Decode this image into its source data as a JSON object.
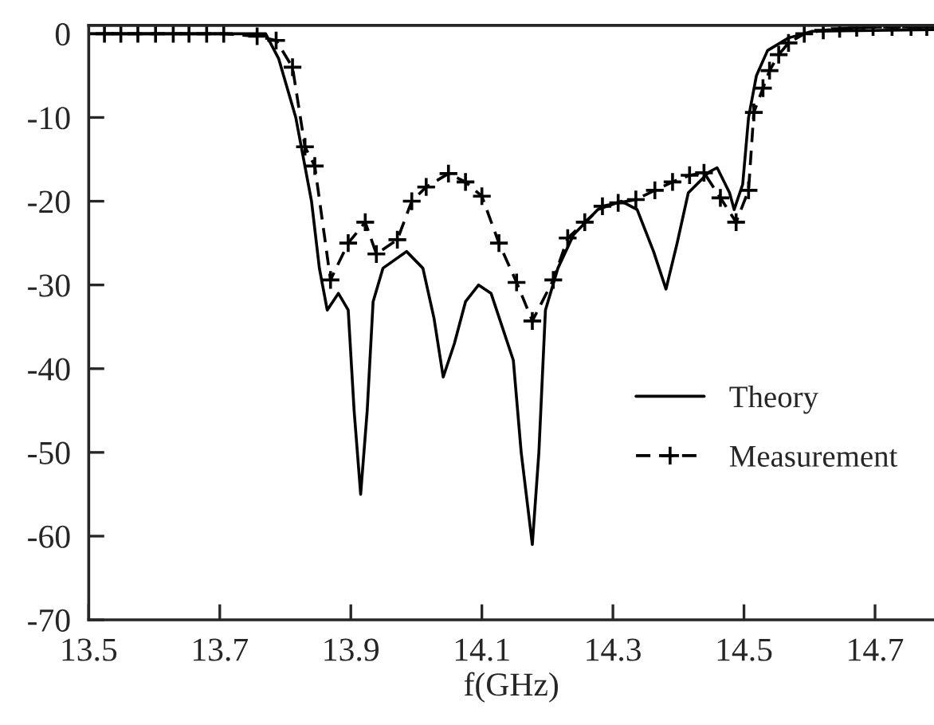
{
  "chart_data": {
    "type": "line",
    "xlabel": "f(GHz)",
    "xlim": [
      13.5,
      14.79
    ],
    "ylim": [
      -70,
      1
    ],
    "xticks": [
      13.5,
      13.7,
      13.9,
      14.1,
      14.3,
      14.5,
      14.7
    ],
    "yticks": [
      0,
      -10,
      -20,
      -30,
      -40,
      -50,
      -60,
      -70
    ],
    "grid": false,
    "legend": "bottom right",
    "series": [
      {
        "name": "Theory",
        "color": "#000000",
        "line_style": "solid",
        "marker": "none",
        "x": [
          13.5,
          13.77,
          13.79,
          13.816,
          13.84,
          13.852,
          13.864,
          13.881,
          13.896,
          13.905,
          13.915,
          13.925,
          13.934,
          13.949,
          13.985,
          14.01,
          14.027,
          14.041,
          14.058,
          14.075,
          14.095,
          14.114,
          14.148,
          14.16,
          14.177,
          14.187,
          14.197,
          14.216,
          14.24,
          14.277,
          14.313,
          14.337,
          14.362,
          14.381,
          14.398,
          14.415,
          14.447,
          14.459,
          14.478,
          14.485,
          14.498,
          14.507,
          14.519,
          14.536,
          14.568,
          14.604,
          14.79
        ],
        "values": [
          0,
          0,
          -3,
          -10,
          -20,
          -28,
          -33,
          -31,
          -33,
          -45,
          -55,
          -45,
          -32,
          -28,
          -26,
          -28,
          -34,
          -41,
          -37,
          -32,
          -30,
          -31,
          -39,
          -50,
          -61,
          -50,
          -33,
          -28,
          -24,
          -21,
          -20,
          -21,
          -26,
          -30.5,
          -25,
          -19,
          -16.5,
          -16,
          -19,
          -21,
          -18,
          -10,
          -5,
          -2,
          -0.5,
          0.3,
          0.5
        ]
      },
      {
        "name": "Measurement",
        "color": "#000000",
        "line_style": "dashed",
        "marker": "cross",
        "x": [
          13.524,
          13.549,
          13.575,
          13.602,
          13.629,
          13.653,
          13.68,
          13.706,
          13.757,
          13.786,
          13.811,
          13.83,
          13.845,
          13.869,
          13.896,
          13.922,
          13.939,
          13.971,
          13.993,
          14.015,
          14.049,
          14.075,
          14.1,
          14.126,
          14.153,
          14.177,
          14.209,
          14.231,
          14.257,
          14.284,
          14.308,
          14.335,
          14.364,
          14.391,
          14.417,
          14.439,
          14.464,
          14.488,
          14.507,
          14.515,
          14.529,
          14.539,
          14.553,
          14.568,
          14.592,
          14.621,
          14.646,
          14.672,
          14.697,
          14.726,
          14.755,
          14.779
        ],
        "values": [
          0,
          0,
          0,
          0,
          0,
          0,
          0,
          0,
          -0.3,
          -0.8,
          -4,
          -13.5,
          -15.8,
          -29.4,
          -25,
          -22.5,
          -26.3,
          -24.6,
          -20,
          -18.3,
          -16.7,
          -17.7,
          -19.4,
          -25,
          -29.7,
          -34.3,
          -29.4,
          -24.4,
          -22.5,
          -20.6,
          -20.2,
          -19.8,
          -18.7,
          -17.7,
          -16.9,
          -16.6,
          -19.6,
          -22.5,
          -18.7,
          -9.4,
          -6.5,
          -4.4,
          -2.5,
          -1.1,
          0,
          0.4,
          0.6,
          0.7,
          0.8,
          0.8,
          0.8,
          0.8
        ]
      }
    ]
  }
}
